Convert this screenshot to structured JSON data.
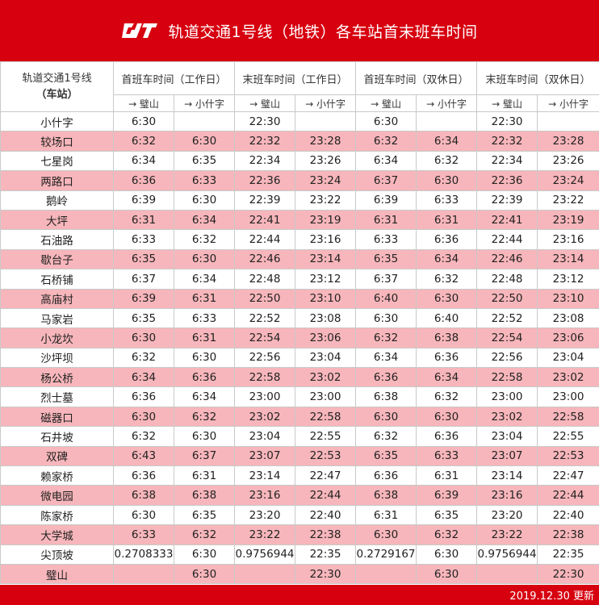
{
  "header": {
    "title": "轨道交通1号线（地铁）各车站首末班车时间",
    "logo_icon": "metro-logo-icon"
  },
  "table": {
    "station_header_line1": "轨道交通1号线",
    "station_header_line2": "（车站）",
    "groups": [
      "首班车时间（工作日）",
      "末班车时间（工作日）",
      "首班车时间（双休日）",
      "末班车时间（双休日）"
    ],
    "dir_to_bishan": "→ 璧山",
    "dir_to_xiaoshizi": "→ 小什字",
    "rows": [
      [
        "小什字",
        "6:30",
        "",
        "22:30",
        "",
        "6:30",
        "",
        "22:30",
        ""
      ],
      [
        "较场口",
        "6:32",
        "6:30",
        "22:32",
        "23:28",
        "6:32",
        "6:34",
        "22:32",
        "23:28"
      ],
      [
        "七星岗",
        "6:34",
        "6:35",
        "22:34",
        "23:26",
        "6:34",
        "6:32",
        "22:34",
        "23:26"
      ],
      [
        "两路口",
        "6:36",
        "6:33",
        "22:36",
        "23:24",
        "6:37",
        "6:30",
        "22:36",
        "23:24"
      ],
      [
        "鹅岭",
        "6:39",
        "6:30",
        "22:39",
        "23:22",
        "6:39",
        "6:33",
        "22:39",
        "23:22"
      ],
      [
        "大坪",
        "6:31",
        "6:34",
        "22:41",
        "23:19",
        "6:31",
        "6:31",
        "22:41",
        "23:19"
      ],
      [
        "石油路",
        "6:33",
        "6:32",
        "22:44",
        "23:16",
        "6:33",
        "6:36",
        "22:44",
        "23:16"
      ],
      [
        "歇台子",
        "6:35",
        "6:30",
        "22:46",
        "23:14",
        "6:35",
        "6:34",
        "22:46",
        "23:14"
      ],
      [
        "石桥铺",
        "6:37",
        "6:34",
        "22:48",
        "23:12",
        "6:37",
        "6:32",
        "22:48",
        "23:12"
      ],
      [
        "高庙村",
        "6:39",
        "6:31",
        "22:50",
        "23:10",
        "6:40",
        "6:30",
        "22:50",
        "23:10"
      ],
      [
        "马家岩",
        "6:35",
        "6:33",
        "22:52",
        "23:08",
        "6:30",
        "6:40",
        "22:52",
        "23:08"
      ],
      [
        "小龙坎",
        "6:30",
        "6:31",
        "22:54",
        "23:06",
        "6:32",
        "6:38",
        "22:54",
        "23:06"
      ],
      [
        "沙坪坝",
        "6:32",
        "6:30",
        "22:56",
        "23:04",
        "6:34",
        "6:36",
        "22:56",
        "23:04"
      ],
      [
        "杨公桥",
        "6:34",
        "6:36",
        "22:58",
        "23:02",
        "6:36",
        "6:34",
        "22:58",
        "23:02"
      ],
      [
        "烈士墓",
        "6:36",
        "6:34",
        "23:00",
        "23:00",
        "6:38",
        "6:32",
        "23:00",
        "23:00"
      ],
      [
        "磁器口",
        "6:30",
        "6:32",
        "23:02",
        "22:58",
        "6:30",
        "6:30",
        "23:02",
        "22:58"
      ],
      [
        "石井坡",
        "6:32",
        "6:30",
        "23:04",
        "22:55",
        "6:32",
        "6:36",
        "23:04",
        "22:55"
      ],
      [
        "双碑",
        "6:43",
        "6:37",
        "23:07",
        "22:53",
        "6:35",
        "6:33",
        "23:07",
        "22:53"
      ],
      [
        "赖家桥",
        "6:36",
        "6:31",
        "23:14",
        "22:47",
        "6:36",
        "6:31",
        "23:14",
        "22:47"
      ],
      [
        "微电园",
        "6:38",
        "6:38",
        "23:16",
        "22:44",
        "6:38",
        "6:39",
        "23:16",
        "22:44"
      ],
      [
        "陈家桥",
        "6:30",
        "6:35",
        "23:20",
        "22:40",
        "6:31",
        "6:35",
        "23:20",
        "22:40"
      ],
      [
        "大学城",
        "6:33",
        "6:32",
        "23:22",
        "22:38",
        "6:30",
        "6:32",
        "23:22",
        "22:38"
      ],
      [
        "尖顶坡",
        "0.2708333",
        "6:30",
        "0.9756944",
        "22:35",
        "0.2729167",
        "6:30",
        "0.9756944",
        "22:35"
      ],
      [
        "璧山",
        "",
        "6:30",
        "",
        "22:30",
        "",
        "6:30",
        "",
        "22:30"
      ]
    ]
  },
  "footer": {
    "updated": "2019.12.30 更新"
  },
  "colors": {
    "brand_red": "#d7000f",
    "row_pink": "#f7b6bb"
  }
}
